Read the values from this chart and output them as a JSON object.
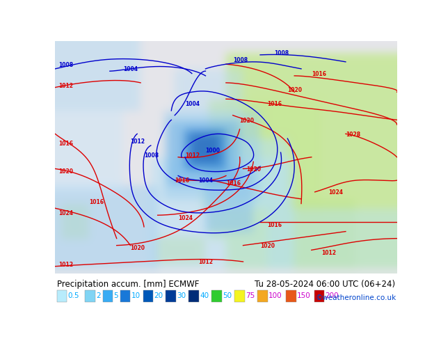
{
  "title_left": "Precipitation accum. [mm] ECMWF",
  "title_right": "Tu 28-05-2024 06:00 UTC (06+24)",
  "credit": "©weatheronline.co.uk",
  "legend_values": [
    "0.5",
    "2",
    "5",
    "10",
    "20",
    "30",
    "40",
    "50",
    "75",
    "100",
    "150",
    "200"
  ],
  "legend_colors": [
    "#b8ecfc",
    "#80d4f4",
    "#38acf4",
    "#1878d8",
    "#0058b8",
    "#003c98",
    "#002c78",
    "#30cc30",
    "#f4f420",
    "#f4a820",
    "#e85818",
    "#c80000"
  ],
  "legend_label_colors_cyan": [
    "0.5",
    "2",
    "5",
    "10",
    "20",
    "30",
    "40",
    "50"
  ],
  "legend_label_colors_magenta": [
    "75",
    "100",
    "150",
    "200"
  ],
  "bg_color": "#ffffff",
  "ocean_color": "#e8e8e8",
  "land_green": "#c8e898",
  "land_green2": "#d8f0a8",
  "precip_light1": "#c8e8f8",
  "precip_light2": "#a0d0f0",
  "precip_mid": "#60b0e8",
  "precip_dark": "#2878d0",
  "precip_vdark": "#0040a0",
  "figure_width": 6.34,
  "figure_height": 4.9,
  "dpi": 100
}
